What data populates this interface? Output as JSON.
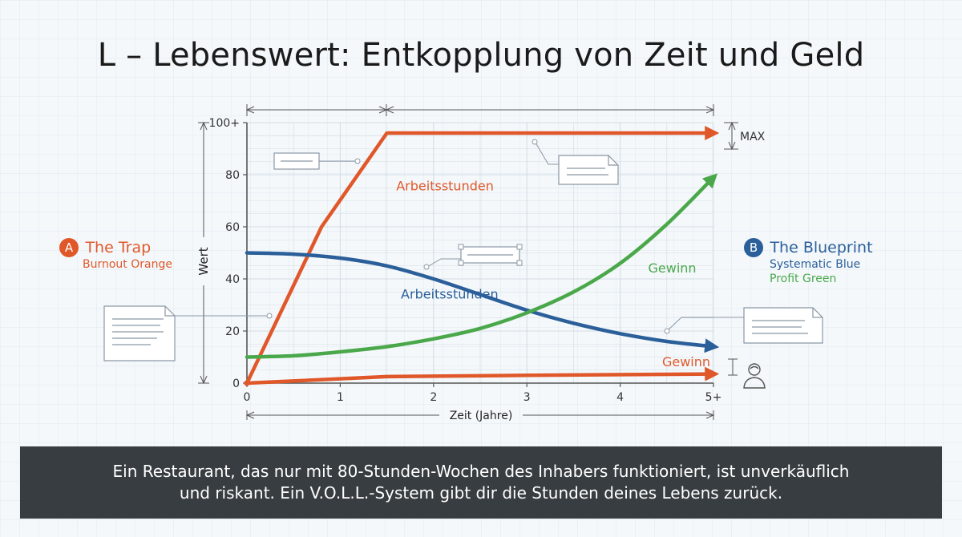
{
  "title": "L – Lebenswert: Entkopplung von Zeit und Geld",
  "left_panel": {
    "badge": "A",
    "title": "The Trap",
    "subtitle": "Burnout Orange"
  },
  "right_panel": {
    "badge": "B",
    "title": "The Blueprint",
    "subtitle_1": "Systematic Blue",
    "subtitle_2": "Profit Green"
  },
  "colors": {
    "orange": "#e0582a",
    "blue": "#2b5f9a",
    "green": "#4aa84a",
    "axis": "#555555",
    "grid": "#d3dbe3",
    "annotation": "#8b97a5"
  },
  "footer": {
    "line_1": "Ein Restaurant, das nur mit 80-Stunden-Wochen des Inhabers funktioniert, ist unverkäuflich",
    "line_2": "und riskant. Ein V.O.L.L.-System gibt dir die Stunden deines Lebens zurück."
  },
  "chart_data": {
    "type": "line",
    "xlabel": "Zeit (Jahre)",
    "ylabel": "Wert",
    "xlim": [
      0,
      5
    ],
    "ylim": [
      0,
      100
    ],
    "x_ticks": [
      "0",
      "1",
      "2",
      "3",
      "4",
      "5+"
    ],
    "y_ticks": [
      "0",
      "20",
      "40",
      "60",
      "80",
      "100+"
    ],
    "max_label": "MAX",
    "grid": true,
    "series": [
      {
        "name": "Arbeitsstunden",
        "color_key": "orange",
        "points": [
          [
            0,
            0
          ],
          [
            0.8,
            60
          ],
          [
            1.5,
            96
          ],
          [
            5,
            96
          ]
        ]
      },
      {
        "name": "Gewinn",
        "color_key": "orange",
        "points": [
          [
            0,
            0
          ],
          [
            1.5,
            2.5
          ],
          [
            3,
            3
          ],
          [
            5,
            3.5
          ]
        ]
      },
      {
        "name": "Arbeitsstunden",
        "color_key": "blue",
        "points": [
          [
            0,
            50
          ],
          [
            0.5,
            49.5
          ],
          [
            1,
            48
          ],
          [
            1.5,
            45
          ],
          [
            2,
            40
          ],
          [
            2.5,
            34
          ],
          [
            3,
            28
          ],
          [
            3.5,
            23
          ],
          [
            4,
            19
          ],
          [
            4.5,
            16
          ],
          [
            5,
            14
          ]
        ]
      },
      {
        "name": "Gewinn",
        "color_key": "green",
        "points": [
          [
            0,
            10
          ],
          [
            0.5,
            10.5
          ],
          [
            1,
            12
          ],
          [
            1.5,
            14
          ],
          [
            2,
            17
          ],
          [
            2.5,
            21
          ],
          [
            3,
            27
          ],
          [
            3.5,
            35
          ],
          [
            4,
            46
          ],
          [
            4.5,
            61
          ],
          [
            5,
            79
          ]
        ]
      }
    ],
    "series_labels": [
      {
        "text": "Arbeitsstunden",
        "color_key": "orange",
        "x": 1.6,
        "y": 74
      },
      {
        "text": "Gewinn",
        "color_key": "orange",
        "x": 4.45,
        "y": 6.5
      },
      {
        "text": "Arbeitsstunden",
        "color_key": "blue",
        "x": 1.65,
        "y": 32.5
      },
      {
        "text": "Gewinn",
        "color_key": "green",
        "x": 4.3,
        "y": 42.5
      }
    ]
  }
}
